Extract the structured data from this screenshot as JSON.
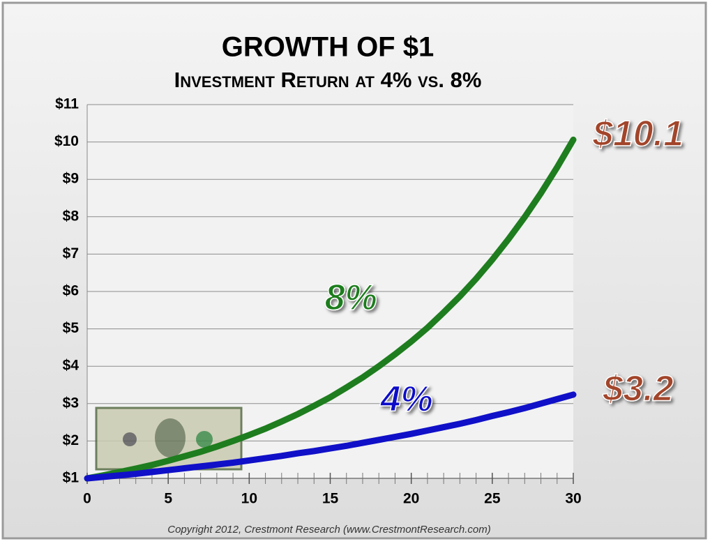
{
  "chart_data": {
    "type": "line",
    "title": "GROWTH OF $1",
    "subtitle": "Investment Return at 4% vs. 8%",
    "x": [
      0,
      1,
      2,
      3,
      4,
      5,
      6,
      7,
      8,
      9,
      10,
      11,
      12,
      13,
      14,
      15,
      16,
      17,
      18,
      19,
      20,
      21,
      22,
      23,
      24,
      25,
      26,
      27,
      28,
      29,
      30
    ],
    "series": [
      {
        "name": "8%",
        "color": "#1e7d1e",
        "end_label": "$10.1",
        "values": [
          1,
          1.08,
          1.17,
          1.26,
          1.36,
          1.47,
          1.59,
          1.71,
          1.85,
          2.0,
          2.16,
          2.33,
          2.52,
          2.72,
          2.94,
          3.17,
          3.43,
          3.7,
          4.0,
          4.32,
          4.66,
          5.03,
          5.44,
          5.87,
          6.34,
          6.85,
          7.4,
          7.99,
          8.63,
          9.32,
          10.06
        ]
      },
      {
        "name": "4%",
        "color": "#1010c8",
        "end_label": "$3.2",
        "values": [
          1,
          1.04,
          1.08,
          1.12,
          1.17,
          1.22,
          1.27,
          1.32,
          1.37,
          1.42,
          1.48,
          1.54,
          1.6,
          1.67,
          1.73,
          1.8,
          1.87,
          1.95,
          2.03,
          2.11,
          2.19,
          2.28,
          2.37,
          2.46,
          2.56,
          2.67,
          2.77,
          2.88,
          3.0,
          3.12,
          3.24
        ]
      }
    ],
    "xlim": [
      0,
      30
    ],
    "xticks": [
      0,
      5,
      10,
      15,
      20,
      25,
      30
    ],
    "ylim": [
      1,
      11
    ],
    "yticks": [
      {
        "value": 1,
        "label": "$1"
      },
      {
        "value": 2,
        "label": "$2"
      },
      {
        "value": 3,
        "label": "$3"
      },
      {
        "value": 4,
        "label": "$4"
      },
      {
        "value": 5,
        "label": "$5"
      },
      {
        "value": 6,
        "label": "$6"
      },
      {
        "value": 7,
        "label": "$7"
      },
      {
        "value": 8,
        "label": "$8"
      },
      {
        "value": 9,
        "label": "$9"
      },
      {
        "value": 10,
        "label": "$10"
      },
      {
        "value": 11,
        "label": "$11"
      }
    ],
    "grid": true,
    "footnote": "Copyright 2012, Crestmont Research (www.CrestmontResearch.com)"
  }
}
